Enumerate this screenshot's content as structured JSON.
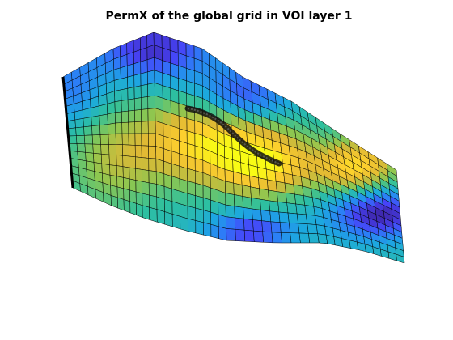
{
  "figure": {
    "title": "PermX of the global grid in VOI layer 1"
  }
}
